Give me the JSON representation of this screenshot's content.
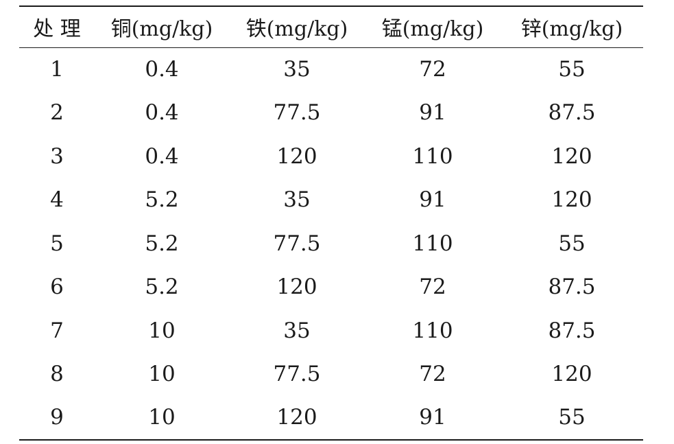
{
  "chart_data": {
    "type": "table",
    "columns": [
      "处 理",
      "铜(mg/kg)",
      "铁(mg/kg)",
      "锰(mg/kg)",
      "锌(mg/kg)"
    ],
    "rows": [
      [
        "1",
        "0.4",
        "35",
        "72",
        "55"
      ],
      [
        "2",
        "0.4",
        "77.5",
        "91",
        "87.5"
      ],
      [
        "3",
        "0.4",
        "120",
        "110",
        "120"
      ],
      [
        "4",
        "5.2",
        "35",
        "91",
        "120"
      ],
      [
        "5",
        "5.2",
        "77.5",
        "110",
        "55"
      ],
      [
        "6",
        "5.2",
        "120",
        "72",
        "87.5"
      ],
      [
        "7",
        "10",
        "35",
        "110",
        "87.5"
      ],
      [
        "8",
        "10",
        "77.5",
        "72",
        "120"
      ],
      [
        "9",
        "10",
        "120",
        "91",
        "55"
      ]
    ]
  }
}
